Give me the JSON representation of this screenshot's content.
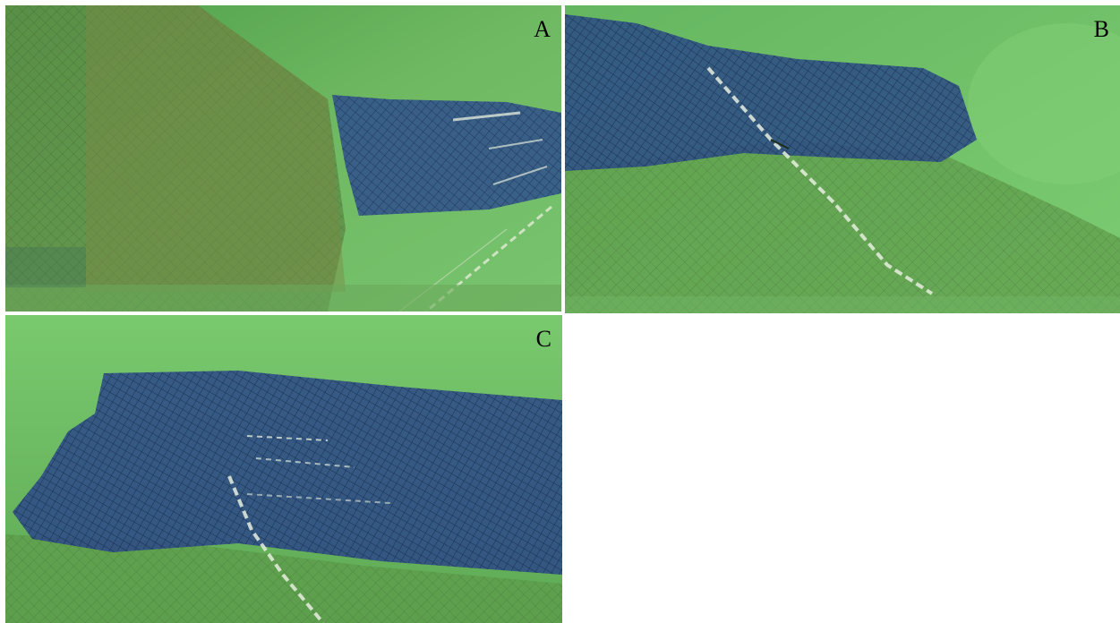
{
  "panels": [
    {
      "label": "A",
      "water_color": "#5fae5a",
      "net_color": "#2f4f8c"
    },
    {
      "label": "B",
      "water_color": "#6cbf6a",
      "net_color": "#2c4a86"
    },
    {
      "label": "C",
      "water_color": "#6cc06c",
      "net_color": "#2b4888"
    }
  ]
}
